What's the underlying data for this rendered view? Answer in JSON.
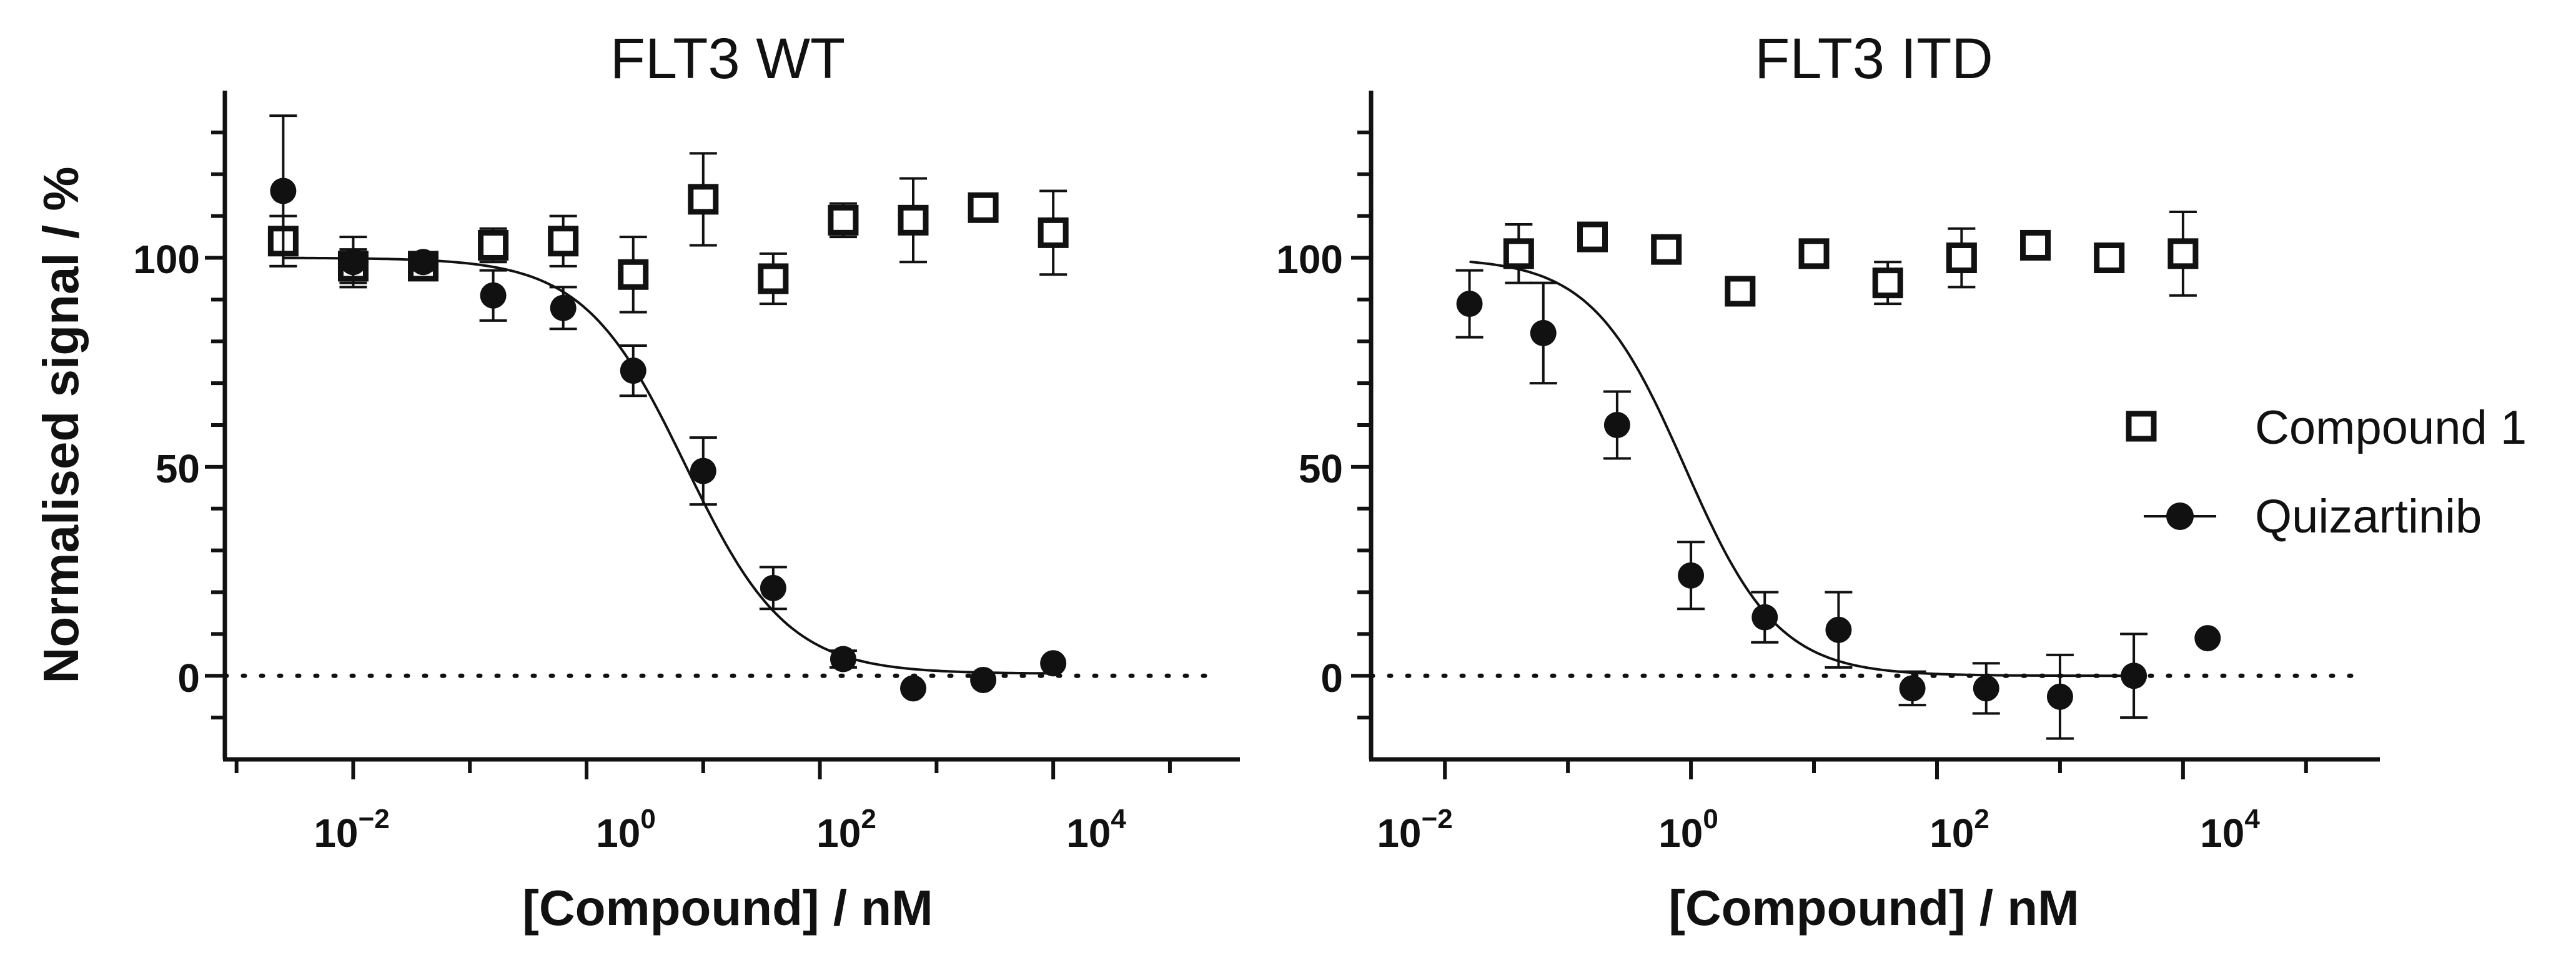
{
  "chart_data": [
    {
      "type": "scatter",
      "title": "FLT3 WT",
      "xlabel": "[Compound] / nM",
      "ylabel": "Normalised signal / %",
      "xscale": "log10",
      "xlim_log10": [
        -3.1,
        5.6
      ],
      "ylim": [
        -20,
        140
      ],
      "yticks": [
        0,
        50,
        100
      ],
      "xticks_log10": [
        -2,
        0,
        2,
        4
      ],
      "xtick_labels": [
        {
          "base": "10",
          "exp": "−2"
        },
        {
          "base": "10",
          "exp": "0"
        },
        {
          "base": "10",
          "exp": "2"
        },
        {
          "base": "10",
          "exp": "4"
        }
      ],
      "ytick_labels": [
        "0",
        "50",
        "100"
      ],
      "baseline": {
        "y": 0,
        "style": "dotted"
      },
      "series": [
        {
          "name": "Compound 1",
          "marker": "open-square",
          "log10_x": [
            -2.6,
            -2.0,
            -1.4,
            -0.8,
            -0.2,
            0.4,
            1.0,
            1.6,
            2.2,
            2.8,
            3.4,
            4.0
          ],
          "y": [
            104,
            98,
            98,
            103,
            104,
            96,
            114,
            95,
            109,
            109,
            112,
            106
          ],
          "err": [
            6,
            4,
            3,
            4,
            6,
            9,
            11,
            6,
            4,
            10,
            3,
            10
          ]
        },
        {
          "name": "Quizartinib",
          "marker": "filled-circle",
          "log10_x": [
            -2.6,
            -2.0,
            -1.4,
            -0.8,
            -0.2,
            0.4,
            1.0,
            1.6,
            2.2,
            2.8,
            3.4,
            4.0
          ],
          "y": [
            116,
            99,
            99,
            91,
            88,
            73,
            49,
            21,
            4,
            -3,
            -1,
            3
          ],
          "err": [
            18,
            6,
            2,
            6,
            5,
            6,
            8,
            5,
            2,
            1,
            1,
            1
          ],
          "fit": {
            "top": 100,
            "bottom": 0.5,
            "log10_ic50": 0.85,
            "hill": 1.0,
            "log10_x_range": [
              -2.6,
              4.0
            ]
          }
        }
      ]
    },
    {
      "type": "scatter",
      "title": "FLT3 ITD",
      "xlabel": "[Compound] / nM",
      "ylabel": "",
      "xscale": "log10",
      "xlim_log10": [
        -2.6,
        5.6
      ],
      "ylim": [
        -20,
        140
      ],
      "yticks": [
        0,
        50,
        100
      ],
      "xticks_log10": [
        -2,
        0,
        2,
        4
      ],
      "xtick_labels": [
        {
          "base": "10",
          "exp": "−2"
        },
        {
          "base": "10",
          "exp": "0"
        },
        {
          "base": "10",
          "exp": "2"
        },
        {
          "base": "10",
          "exp": "4"
        }
      ],
      "ytick_labels": [
        "0",
        "50",
        "100"
      ],
      "baseline": {
        "y": 0,
        "style": "dotted"
      },
      "legend": {
        "position": "right",
        "entries": [
          "Compound 1",
          "Quizartinib"
        ]
      },
      "series": [
        {
          "name": "Compound 1",
          "marker": "open-square",
          "log10_x": [
            -1.4,
            -0.8,
            -0.2,
            0.4,
            1.0,
            1.6,
            2.2,
            2.8,
            3.4,
            4.0
          ],
          "y": [
            101,
            105,
            102,
            92,
            101,
            94,
            100,
            103,
            100,
            101
          ],
          "err": [
            7,
            2,
            3,
            2,
            2,
            5,
            7,
            2,
            2,
            10
          ]
        },
        {
          "name": "Quizartinib",
          "marker": "filled-circle",
          "log10_x": [
            -1.8,
            -1.2,
            -0.6,
            0.0,
            0.6,
            1.2,
            1.8,
            2.4,
            3.0,
            3.6,
            4.2
          ],
          "y": [
            89,
            82,
            60,
            24,
            14,
            11,
            -3,
            -3,
            -5,
            0,
            9
          ],
          "err": [
            8,
            12,
            8,
            8,
            6,
            9,
            4,
            6,
            10,
            10,
            1
          ],
          "fit": {
            "top": 100,
            "bottom": 0,
            "log10_ic50": -0.05,
            "hill": 1.15,
            "log10_x_range": [
              -1.8,
              3.6
            ]
          }
        }
      ]
    }
  ]
}
